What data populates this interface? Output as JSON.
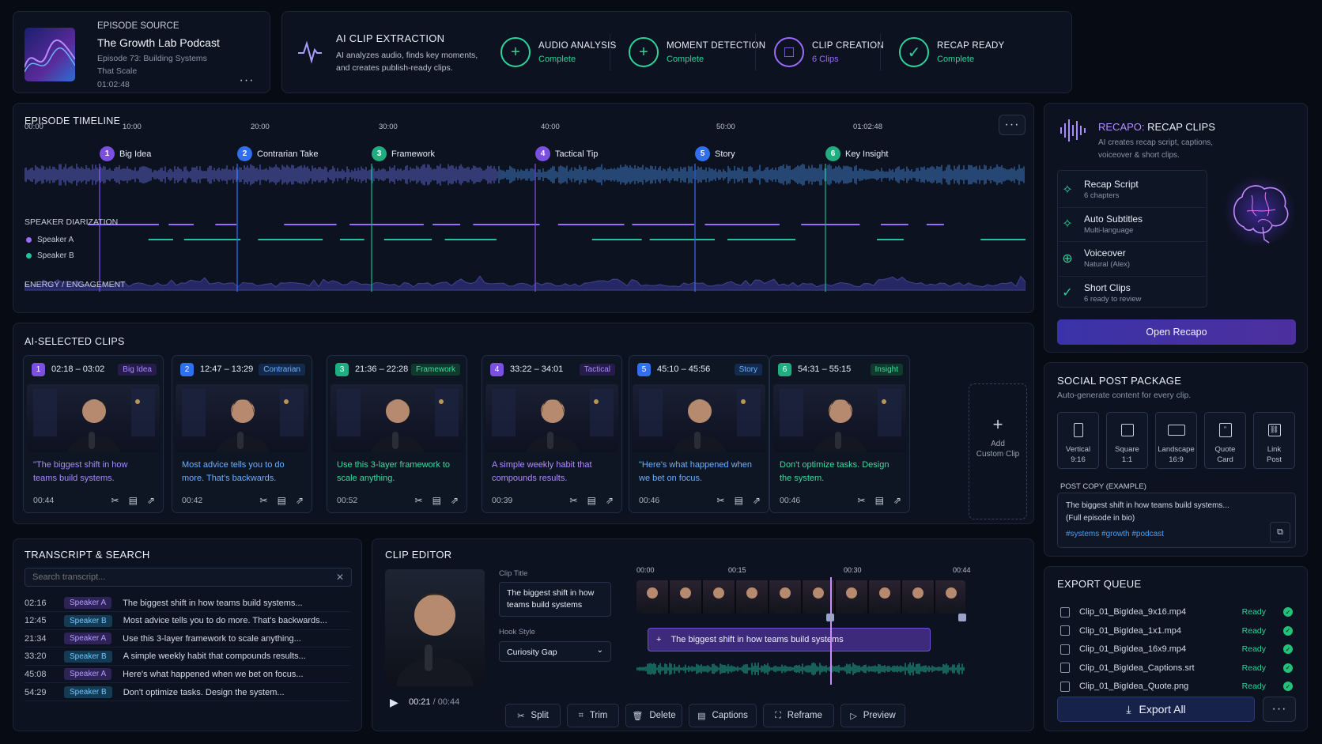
{
  "source": {
    "label": "EPISODE SOURCE",
    "podcast": "The Growth Lab Podcast",
    "episode_line1": "Episode 73: Building Systems",
    "episode_line2": "That Scale",
    "duration": "01:02:48",
    "more": "···"
  },
  "extraction": {
    "title": "AI CLIP EXTRACTION",
    "desc_line1": "AI analyzes audio, finds key moments,",
    "desc_line2": "and creates publish-ready clips.",
    "stages": [
      {
        "name": "AUDIO ANALYSIS",
        "status": "Complete",
        "color": "#2fd39a",
        "glyph": "+"
      },
      {
        "name": "MOMENT DETECTION",
        "status": "Complete",
        "color": "#2fd39a",
        "glyph": "+"
      },
      {
        "name": "CLIP CREATION",
        "status": "6 Clips",
        "color": "#9b6bff",
        "glyph": "□"
      },
      {
        "name": "RECAP READY",
        "status": "Complete",
        "color": "#2fd39a",
        "glyph": "✓"
      }
    ]
  },
  "timeline": {
    "title": "EPISODE TIMELINE",
    "ticks": [
      "00:00",
      "10:00",
      "20:00",
      "30:00",
      "40:00",
      "50:00",
      "01:02:48"
    ],
    "more": "···",
    "markers": [
      {
        "n": "1",
        "label": "Big Idea",
        "color": "#7b4fe0"
      },
      {
        "n": "2",
        "label": "Contrarian Take",
        "color": "#2f6ff0"
      },
      {
        "n": "3",
        "label": "Framework",
        "color": "#1fae7f"
      },
      {
        "n": "4",
        "label": "Tactical Tip",
        "color": "#7b4fe0"
      },
      {
        "n": "5",
        "label": "Story",
        "color": "#2f6ff0"
      },
      {
        "n": "6",
        "label": "Key Insight",
        "color": "#1fae7f"
      }
    ],
    "diarization_label": "SPEAKER DIARIZATION",
    "speakers": [
      {
        "name": "Speaker A",
        "color": "#9b6bff"
      },
      {
        "name": "Speaker B",
        "color": "#22c2a0"
      }
    ],
    "energy_label": "ENERGY / ENGAGEMENT"
  },
  "clips": {
    "title": "AI-SELECTED CLIPS",
    "items": [
      {
        "n": "1",
        "range": "02:18 – 03:02",
        "tag": "Big Idea",
        "quote": "\"The biggest shift in how teams build systems.",
        "dur": "00:44",
        "color": "#7b4fe0",
        "tagbg": "#261c4a",
        "tagfg": "#a88bff",
        "qfg": "#a88bff"
      },
      {
        "n": "2",
        "range": "12:47 – 13:29",
        "tag": "Contrarian",
        "quote": "Most advice tells you to do more. That's backwards.",
        "dur": "00:42",
        "color": "#2f6ff0",
        "tagbg": "#132a4d",
        "tagfg": "#6fb0ff",
        "qfg": "#6fb0ff"
      },
      {
        "n": "3",
        "range": "21:36 – 22:28",
        "tag": "Framework",
        "quote": "Use this 3-layer framework to scale anything.",
        "dur": "00:52",
        "color": "#1fae7f",
        "tagbg": "#103a2e",
        "tagfg": "#3fdca0",
        "qfg": "#3fdca0"
      },
      {
        "n": "4",
        "range": "33:22 – 34:01",
        "tag": "Tactical",
        "quote": "A simple weekly habit that compounds results.",
        "dur": "00:39",
        "color": "#7b4fe0",
        "tagbg": "#261c4a",
        "tagfg": "#a88bff",
        "qfg": "#b48cff"
      },
      {
        "n": "5",
        "range": "45:10 – 45:56",
        "tag": "Story",
        "quote": "\"Here's what happened when we bet on focus.",
        "dur": "00:46",
        "color": "#2f6ff0",
        "tagbg": "#132a4d",
        "tagfg": "#6fb0ff",
        "qfg": "#6fb0ff"
      },
      {
        "n": "6",
        "range": "54:31 – 55:15",
        "tag": "Insight",
        "quote": "Don't optimize tasks. Design the system.",
        "dur": "00:46",
        "color": "#1fae7f",
        "tagbg": "#103a2e",
        "tagfg": "#3fdca0",
        "qfg": "#3fdca0"
      }
    ],
    "add_line1": "Add",
    "add_line2": "Custom Clip"
  },
  "transcript": {
    "title": "TRANSCRIPT & SEARCH",
    "placeholder": "Search transcript...",
    "rows": [
      {
        "t": "02:16",
        "sp": "Speaker A",
        "text": "The biggest shift in how teams build systems..."
      },
      {
        "t": "12:45",
        "sp": "Speaker B",
        "text": "Most advice tells you to do more. That's backwards..."
      },
      {
        "t": "21:34",
        "sp": "Speaker A",
        "text": "Use this 3-layer framework to scale anything..."
      },
      {
        "t": "33:20",
        "sp": "Speaker B",
        "text": "A simple weekly habit that compounds results..."
      },
      {
        "t": "45:08",
        "sp": "Speaker A",
        "text": "Here's what happened when we bet on focus..."
      },
      {
        "t": "54:29",
        "sp": "Speaker B",
        "text": "Don't optimize tasks. Design the system..."
      }
    ]
  },
  "editor": {
    "title": "CLIP EDITOR",
    "clip_title_label": "Clip Title",
    "clip_title": "The biggest shift in how teams build systems",
    "hook_label": "Hook Style",
    "hook": "Curiosity Gap",
    "ticks": [
      "00:00",
      "00:15",
      "00:30",
      "00:44"
    ],
    "caption": "The biggest shift in how teams build systems",
    "time": "00:21",
    "total": "/ 00:44",
    "tools": [
      {
        "icon": "✂",
        "label": "Split"
      },
      {
        "icon": "⌗",
        "label": "Trim"
      },
      {
        "icon": "🗑",
        "label": "Delete"
      },
      {
        "icon": "▤",
        "label": "Captions"
      },
      {
        "icon": "⛶",
        "label": "Reframe"
      },
      {
        "icon": "▷",
        "label": "Preview"
      }
    ]
  },
  "recapo": {
    "title_a": "RECAPO:",
    "title_b": " RECAP CLIPS",
    "desc_line1": "AI creates recap script, captions,",
    "desc_line2": "voiceover & short clips.",
    "features": [
      {
        "name": "Recap Script",
        "sub": "6 chapters",
        "icon": "✧"
      },
      {
        "name": "Auto Subtitles",
        "sub": "Multi-language",
        "icon": "✧"
      },
      {
        "name": "Voiceover",
        "sub": "Natural (Alex)",
        "icon": "⊕"
      },
      {
        "name": "Short Clips",
        "sub": "6 ready to review",
        "icon": "✓"
      }
    ],
    "button": "Open Recapo"
  },
  "social": {
    "title": "SOCIAL POST PACKAGE",
    "desc": "Auto-generate content for every clip.",
    "formats": [
      {
        "a": "Vertical",
        "b": "9:16"
      },
      {
        "a": "Square",
        "b": "1:1"
      },
      {
        "a": "Landscape",
        "b": "16:9"
      },
      {
        "a": "Quote",
        "b": "Card"
      },
      {
        "a": "Link",
        "b": "Post"
      }
    ],
    "copy_label": "POST COPY (EXAMPLE)",
    "copy_line1": "The biggest shift in how teams build systems...",
    "copy_line2": "(Full episode in bio)",
    "hashtags": "#systems #growth #podcast"
  },
  "export": {
    "title": "EXPORT QUEUE",
    "files": [
      {
        "name": "Clip_01_BigIdea_9x16.mp4",
        "status": "Ready"
      },
      {
        "name": "Clip_01_BigIdea_1x1.mp4",
        "status": "Ready"
      },
      {
        "name": "Clip_01_BigIdea_16x9.mp4",
        "status": "Ready"
      },
      {
        "name": "Clip_01_BigIdea_Captions.srt",
        "status": "Ready"
      },
      {
        "name": "Clip_01_BigIdea_Quote.png",
        "status": "Ready"
      }
    ],
    "button": "Export All",
    "more": "···"
  }
}
